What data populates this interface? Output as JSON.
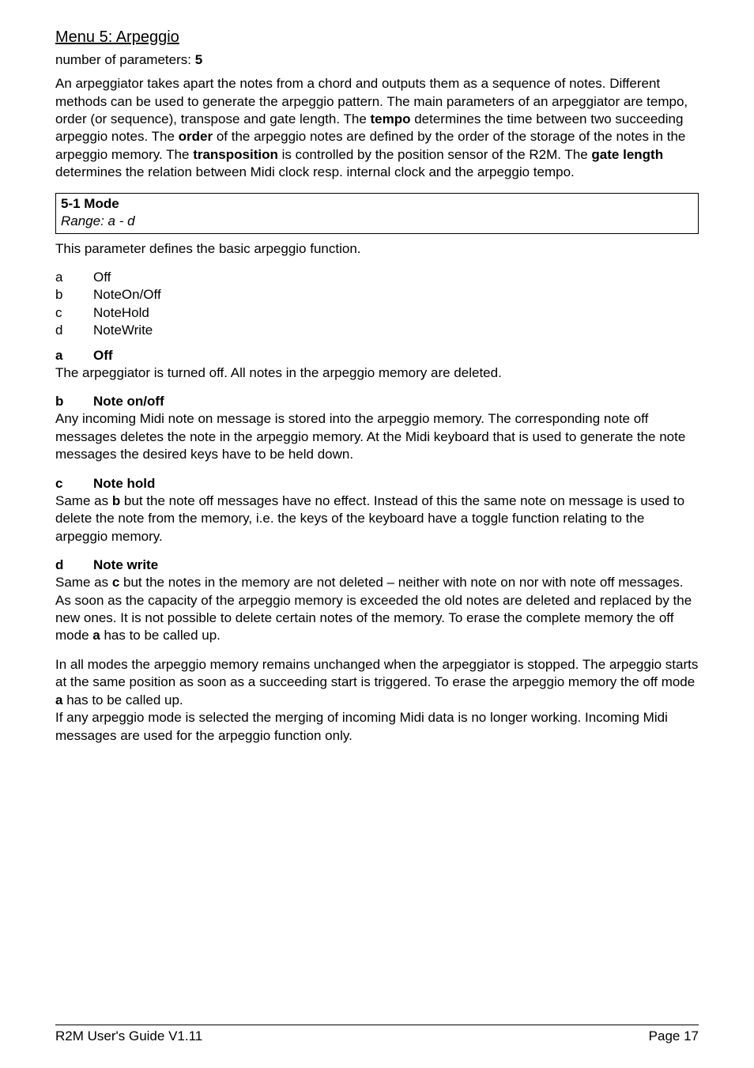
{
  "heading": "Menu 5: Arpeggio",
  "param_count_line_pre": "number of parameters: ",
  "param_count": "5",
  "intro_html": "An arpeggiator takes apart the notes from a chord and outputs them as a sequence of notes. Different methods can be used to generate the arpeggio pattern. The main parameters of an arpeggiator are tempo, order (or sequence), transpose and gate length. The <b>tempo</b> determines the time between two succeeding arpeggio notes. The <b>order</b> of the arpeggio notes are defined by the order of the storage of the notes in the arpeggio memory. The <b>transposition</b> is controlled by the position sensor of the R2M. The <b>gate length</b> determines the relation between Midi clock resp. internal clock and the arpeggio tempo.",
  "box": {
    "title": "5-1 Mode",
    "range": "Range:  a - d"
  },
  "notice": "This parameter defines the basic arpeggio function.",
  "options": [
    {
      "k": "a",
      "v": "Off"
    },
    {
      "k": "b",
      "v": "NoteOn/Off"
    },
    {
      "k": "c",
      "v": "NoteHold"
    },
    {
      "k": "d",
      "v": "NoteWrite"
    }
  ],
  "sections": [
    {
      "k": "a",
      "title": "Off",
      "body_html": "The arpeggiator is turned off. All notes in the arpeggio memory are deleted."
    },
    {
      "k": "b",
      "title": "Note on/off",
      "body_html": "Any incoming Midi note on message is stored into the arpeggio memory. The corresponding note off messages deletes the note in the arpeggio memory. At the Midi keyboard that is used to generate the note messages the desired keys have to be held down."
    },
    {
      "k": "c",
      "title": "Note hold",
      "body_html": "Same as <b>b</b> but the note off messages have no effect. Instead of this the same note on message is used to delete the note from the memory, i.e. the keys of the keyboard have a toggle function relating to the arpeggio memory."
    },
    {
      "k": "d",
      "title": "Note write",
      "body_html": "Same as <b>c</b> but the notes in the memory are not deleted – neither with note on nor with note off messages. As soon as the capacity of the arpeggio memory is exceeded the old notes are deleted and replaced by the new ones. It is not possible to delete certain notes of the memory. To erase the complete memory the off mode <b>a</b> has to be called up."
    }
  ],
  "closing_html": "In all modes the arpeggio memory remains unchanged when the arpeggiator is stopped. The arpeggio starts at the same position as soon as a succeeding start is triggered. To erase the arpeggio memory the off mode <b>a</b> has to be called up.<br>If any arpeggio mode is selected the merging of incoming Midi data is no longer working. Incoming Midi messages are used for the arpeggio function only.",
  "footer": {
    "left": "R2M User's Guide V1.11",
    "right": "Page 17"
  }
}
